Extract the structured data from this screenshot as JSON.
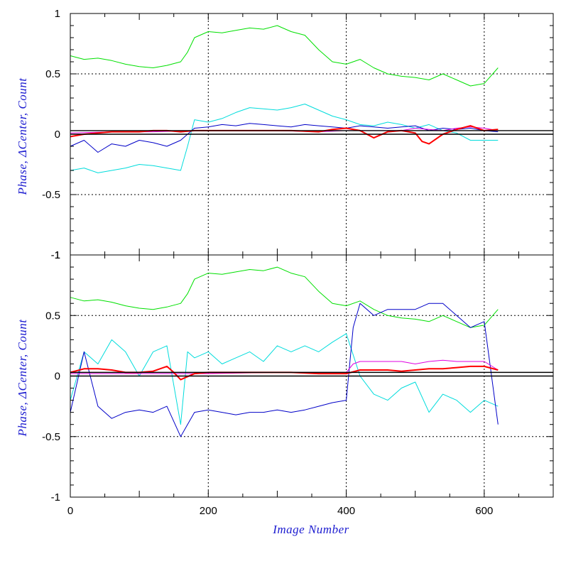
{
  "chart_data": [
    {
      "type": "line",
      "panel": "top",
      "xlabel": "",
      "ylabel": "Phase, ΔCenter, Count",
      "xlim": [
        0,
        700
      ],
      "ylim": [
        -1,
        1
      ],
      "xticks": [
        0,
        200,
        400,
        600
      ],
      "yticks": [
        -1,
        -0.5,
        0,
        0.5,
        1
      ],
      "ytick_labels": [
        "-1",
        "-0.5",
        "0",
        "0.5",
        "1"
      ],
      "grid": "dotted at x=200,400,600 and y=-0.5,0.5",
      "reference_lines": [
        0,
        0.03
      ],
      "series": [
        {
          "color": "#00e000",
          "x": [
            0,
            20,
            40,
            60,
            80,
            100,
            120,
            140,
            160,
            170,
            180,
            200,
            220,
            240,
            260,
            280,
            300,
            320,
            340,
            360,
            380,
            400,
            420,
            440,
            460,
            480,
            500,
            520,
            540,
            560,
            580,
            600,
            620
          ],
          "y": [
            0.65,
            0.62,
            0.63,
            0.61,
            0.58,
            0.56,
            0.55,
            0.57,
            0.6,
            0.68,
            0.8,
            0.85,
            0.84,
            0.86,
            0.88,
            0.87,
            0.9,
            0.85,
            0.82,
            0.7,
            0.6,
            0.58,
            0.62,
            0.55,
            0.5,
            0.48,
            0.47,
            0.45,
            0.5,
            0.45,
            0.4,
            0.42,
            0.55
          ]
        },
        {
          "color": "#00dcdc",
          "x": [
            0,
            20,
            40,
            60,
            80,
            100,
            120,
            140,
            160,
            170,
            180,
            200,
            220,
            240,
            260,
            280,
            300,
            320,
            340,
            360,
            380,
            400,
            420,
            440,
            460,
            480,
            500,
            520,
            540,
            560,
            580,
            600,
            620
          ],
          "y": [
            -0.3,
            -0.28,
            -0.32,
            -0.3,
            -0.28,
            -0.25,
            -0.26,
            -0.28,
            -0.3,
            -0.1,
            0.12,
            0.1,
            0.13,
            0.18,
            0.22,
            0.21,
            0.2,
            0.22,
            0.25,
            0.2,
            0.15,
            0.12,
            0.08,
            0.07,
            0.1,
            0.08,
            0.05,
            0.08,
            0.03,
            0.01,
            -0.05,
            -0.05,
            -0.05
          ]
        },
        {
          "color": "#0000c8",
          "x": [
            0,
            20,
            40,
            60,
            80,
            100,
            120,
            140,
            160,
            170,
            180,
            200,
            220,
            240,
            260,
            280,
            300,
            320,
            340,
            360,
            380,
            400,
            420,
            440,
            460,
            480,
            500,
            520,
            540,
            560,
            580,
            600,
            620
          ],
          "y": [
            -0.1,
            -0.05,
            -0.15,
            -0.08,
            -0.1,
            -0.05,
            -0.07,
            -0.1,
            -0.05,
            0.0,
            0.05,
            0.06,
            0.08,
            0.07,
            0.09,
            0.08,
            0.07,
            0.06,
            0.08,
            0.07,
            0.06,
            0.05,
            0.07,
            0.06,
            0.05,
            0.06,
            0.07,
            0.03,
            0.05,
            0.04,
            0.05,
            0.03,
            0.02
          ]
        },
        {
          "color": "#e000e0",
          "x": [
            0,
            60,
            120,
            180,
            240,
            300,
            360,
            400,
            440,
            480,
            500,
            520,
            540,
            560,
            580,
            600,
            620
          ],
          "y": [
            0.01,
            0.02,
            0.02,
            0.03,
            0.03,
            0.03,
            0.02,
            0.03,
            0.03,
            0.03,
            0.05,
            0.04,
            0.03,
            0.05,
            0.06,
            0.05,
            0.03
          ]
        },
        {
          "color": "#ff0000",
          "x": [
            0,
            20,
            40,
            60,
            80,
            100,
            120,
            140,
            160,
            180,
            200,
            240,
            280,
            320,
            360,
            380,
            400,
            420,
            440,
            460,
            480,
            500,
            510,
            520,
            540,
            560,
            580,
            600,
            620
          ],
          "y": [
            -0.02,
            0.0,
            0.01,
            0.02,
            0.02,
            0.02,
            0.03,
            0.03,
            0.02,
            0.03,
            0.03,
            0.03,
            0.03,
            0.03,
            0.02,
            0.04,
            0.05,
            0.03,
            -0.03,
            0.02,
            0.03,
            0.01,
            -0.06,
            -0.08,
            0.0,
            0.04,
            0.07,
            0.03,
            0.04
          ]
        }
      ]
    },
    {
      "type": "line",
      "panel": "bottom",
      "xlabel": "Image Number",
      "ylabel": "Phase, ΔCenter, Count",
      "xlim": [
        0,
        700
      ],
      "ylim": [
        -1,
        1
      ],
      "xticks": [
        0,
        200,
        400,
        600
      ],
      "xtick_labels": [
        "0",
        "200",
        "400",
        "600"
      ],
      "yticks": [
        -1,
        -0.5,
        0,
        0.5,
        1
      ],
      "ytick_labels": [
        "-1",
        "-0.5",
        "0",
        "0.5",
        "1"
      ],
      "grid": "dotted at x=200,400,600 and y=-0.5,0.5",
      "reference_lines": [
        0,
        0.03
      ],
      "series": [
        {
          "color": "#00e000",
          "x": [
            0,
            20,
            40,
            60,
            80,
            100,
            120,
            140,
            160,
            170,
            180,
            200,
            220,
            240,
            260,
            280,
            300,
            320,
            340,
            360,
            380,
            400,
            420,
            440,
            460,
            480,
            500,
            520,
            540,
            560,
            580,
            600,
            620
          ],
          "y": [
            0.65,
            0.62,
            0.63,
            0.61,
            0.58,
            0.56,
            0.55,
            0.57,
            0.6,
            0.68,
            0.8,
            0.85,
            0.84,
            0.86,
            0.88,
            0.87,
            0.9,
            0.85,
            0.82,
            0.7,
            0.6,
            0.58,
            0.62,
            0.55,
            0.5,
            0.48,
            0.47,
            0.45,
            0.5,
            0.45,
            0.4,
            0.42,
            0.55
          ]
        },
        {
          "color": "#00dcdc",
          "x": [
            0,
            20,
            40,
            60,
            80,
            100,
            120,
            140,
            160,
            170,
            180,
            200,
            220,
            240,
            260,
            280,
            300,
            320,
            340,
            360,
            380,
            400,
            420,
            440,
            460,
            480,
            500,
            520,
            540,
            560,
            580,
            600,
            620
          ],
          "y": [
            -0.2,
            0.2,
            0.1,
            0.3,
            0.2,
            0.0,
            0.2,
            0.25,
            -0.4,
            0.2,
            0.15,
            0.2,
            0.1,
            0.15,
            0.2,
            0.12,
            0.25,
            0.2,
            0.25,
            0.2,
            0.28,
            0.35,
            0.0,
            -0.15,
            -0.2,
            -0.1,
            -0.05,
            -0.3,
            -0.15,
            -0.2,
            -0.3,
            -0.2,
            -0.25
          ]
        },
        {
          "color": "#0000c8",
          "x": [
            0,
            20,
            40,
            60,
            80,
            100,
            120,
            140,
            160,
            170,
            180,
            200,
            220,
            240,
            260,
            280,
            300,
            320,
            340,
            360,
            380,
            400,
            410,
            420,
            440,
            460,
            480,
            500,
            520,
            540,
            560,
            580,
            600,
            620
          ],
          "y": [
            -0.3,
            0.2,
            -0.25,
            -0.35,
            -0.3,
            -0.28,
            -0.3,
            -0.25,
            -0.5,
            -0.4,
            -0.3,
            -0.28,
            -0.3,
            -0.32,
            -0.3,
            -0.3,
            -0.28,
            -0.3,
            -0.28,
            -0.25,
            -0.22,
            -0.2,
            0.4,
            0.6,
            0.5,
            0.55,
            0.55,
            0.55,
            0.6,
            0.6,
            0.5,
            0.4,
            0.45,
            -0.4
          ]
        },
        {
          "color": "#e000e0",
          "x": [
            0,
            100,
            200,
            300,
            400,
            410,
            420,
            440,
            460,
            480,
            500,
            520,
            540,
            560,
            580,
            600,
            620
          ],
          "y": [
            0.02,
            0.02,
            0.02,
            0.03,
            0.03,
            0.1,
            0.12,
            0.12,
            0.12,
            0.12,
            0.1,
            0.12,
            0.13,
            0.12,
            0.12,
            0.12,
            0.05
          ]
        },
        {
          "color": "#ff0000",
          "x": [
            0,
            20,
            40,
            60,
            80,
            100,
            120,
            140,
            150,
            160,
            180,
            200,
            240,
            280,
            320,
            360,
            400,
            420,
            440,
            460,
            480,
            500,
            520,
            540,
            560,
            580,
            600,
            620
          ],
          "y": [
            0.03,
            0.06,
            0.06,
            0.05,
            0.03,
            0.03,
            0.04,
            0.08,
            0.03,
            -0.03,
            0.02,
            0.03,
            0.03,
            0.03,
            0.03,
            0.02,
            0.02,
            0.05,
            0.05,
            0.05,
            0.04,
            0.05,
            0.06,
            0.06,
            0.07,
            0.08,
            0.08,
            0.05
          ]
        }
      ]
    }
  ]
}
